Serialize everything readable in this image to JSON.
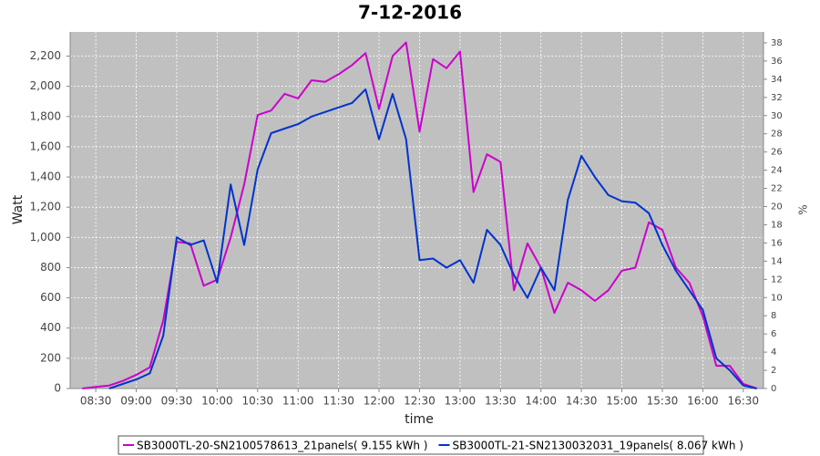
{
  "chart_data": {
    "type": "line",
    "title": "7-12-2016",
    "xlabel": "time",
    "ylabel": "Watt",
    "y2label": "%",
    "x": [
      "08:20",
      "08:30",
      "08:40",
      "08:50",
      "09:00",
      "09:10",
      "09:20",
      "09:30",
      "09:40",
      "09:50",
      "10:00",
      "10:10",
      "10:20",
      "10:30",
      "10:40",
      "10:50",
      "11:00",
      "11:10",
      "11:20",
      "11:30",
      "11:40",
      "11:50",
      "12:00",
      "12:10",
      "12:20",
      "12:30",
      "12:40",
      "12:50",
      "13:00",
      "13:10",
      "13:20",
      "13:30",
      "13:40",
      "13:50",
      "14:00",
      "14:10",
      "14:20",
      "14:30",
      "14:40",
      "14:50",
      "15:00",
      "15:10",
      "15:20",
      "15:30",
      "15:40",
      "15:50",
      "16:00",
      "16:10",
      "16:20",
      "16:30",
      "16:40"
    ],
    "series": [
      {
        "name": "SB3000TL-20-SN2100578613_21panels( 9.155 kWh )",
        "color": "#cc00cc",
        "values": [
          0,
          10,
          20,
          50,
          90,
          140,
          450,
          970,
          960,
          680,
          720,
          1000,
          1350,
          1810,
          1840,
          1950,
          1920,
          2040,
          2030,
          2080,
          2140,
          2220,
          1850,
          2200,
          2290,
          1700,
          2180,
          2120,
          2230,
          1300,
          1550,
          1500,
          650,
          960,
          800,
          500,
          700,
          650,
          580,
          650,
          780,
          800,
          1100,
          1050,
          800,
          700,
          480,
          150,
          150,
          30,
          0
        ]
      },
      {
        "name": "SB3000TL-21-SN2130032031_19panels( 8.067 kWh )",
        "color": "#0033cc",
        "values": [
          null,
          null,
          0,
          30,
          60,
          100,
          350,
          1000,
          950,
          980,
          700,
          1350,
          950,
          1450,
          1690,
          1720,
          1750,
          1800,
          1830,
          1860,
          1890,
          1980,
          1650,
          1950,
          1650,
          850,
          860,
          800,
          850,
          700,
          1050,
          950,
          750,
          600,
          800,
          650,
          1250,
          1540,
          1400,
          1280,
          1240,
          1230,
          1160,
          950,
          780,
          650,
          520,
          200,
          120,
          20,
          0
        ]
      }
    ],
    "xlim": [
      "08:11",
      "16:45"
    ],
    "xticks": [
      "08:30",
      "09:00",
      "09:30",
      "10:00",
      "10:30",
      "11:00",
      "11:30",
      "12:00",
      "12:30",
      "13:00",
      "13:30",
      "14:00",
      "14:30",
      "15:00",
      "15:30",
      "16:00",
      "16:30"
    ],
    "ylim": [
      0,
      2360
    ],
    "yticks": [
      0,
      200,
      400,
      600,
      800,
      {
        "value": 1000,
        "label": "1,000"
      },
      {
        "value": 1200,
        "label": "1,200"
      },
      {
        "value": 1400,
        "label": "1,400"
      },
      {
        "value": 1600,
        "label": "1,600"
      },
      {
        "value": 1800,
        "label": "1,800"
      },
      {
        "value": 2000,
        "label": "2,000"
      },
      {
        "value": 2200,
        "label": "2,200"
      }
    ],
    "y2lim": [
      0,
      39.2
    ],
    "y2ticks": [
      0,
      2,
      4,
      6,
      8,
      10,
      12,
      14,
      16,
      18,
      20,
      22,
      24,
      26,
      28,
      30,
      32,
      34,
      36,
      38
    ],
    "grid": true,
    "legend": "bottom"
  }
}
